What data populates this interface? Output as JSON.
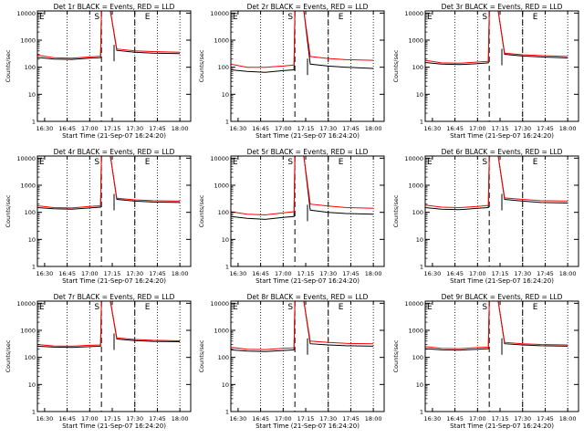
{
  "colors": {
    "events": "#000000",
    "lld": "#ff0000",
    "background": "#ffffff"
  },
  "shared": {
    "xlabel": "Start Time (21-Sep-07 16:24:20)",
    "ylabel": "Counts/sec",
    "x_ticks": [
      16.5,
      16.75,
      17.0,
      17.25,
      17.5,
      17.75,
      18.0
    ],
    "x_tick_labels": [
      "16:30",
      "16:45",
      "17:00",
      "17:15",
      "17:30",
      "17:45",
      "18:00"
    ],
    "y_ticks": [
      1,
      10,
      100,
      1000,
      10000
    ],
    "y_tick_labels": [
      "1",
      "10",
      "100",
      "1000",
      "10000"
    ],
    "xlim": [
      16.42,
      18.12
    ],
    "ylim": [
      1,
      12000
    ],
    "dotted_lines_x": [
      16.75,
      17.0,
      17.5,
      17.75,
      18.0
    ],
    "dashed_lines_x": [
      17.13,
      17.5
    ],
    "markers": [
      {
        "label": "S",
        "x": 17.08
      },
      {
        "label": "E",
        "x": 17.64
      }
    ],
    "short_marker_x": 17.27
  },
  "chart_data": [
    {
      "type": "line",
      "title": "Det 1r BLACK = Events, RED = LLD",
      "xlabel": "Start Time (21-Sep-07 16:24:20)",
      "ylabel": "Counts/sec",
      "ylim": [
        1,
        12000
      ],
      "series": [
        {
          "name": "Events",
          "color": "#000000",
          "x": [
            16.42,
            16.6,
            16.8,
            17.0,
            17.12,
            17.13,
            17.2,
            17.23,
            17.3,
            17.5,
            17.7,
            18.0
          ],
          "values": [
            230,
            200,
            195,
            215,
            225,
            12000,
            12000,
            12000,
            420,
            360,
            330,
            320
          ]
        },
        {
          "name": "LLD",
          "color": "#ff0000",
          "x": [
            16.42,
            16.6,
            16.8,
            17.0,
            17.12,
            17.13,
            17.2,
            17.23,
            17.3,
            17.5,
            17.7,
            18.0
          ],
          "values": [
            280,
            225,
            215,
            240,
            255,
            12000,
            12000,
            12000,
            470,
            400,
            380,
            360
          ]
        }
      ]
    },
    {
      "type": "line",
      "title": "Det 2r BLACK = Events, RED = LLD",
      "xlabel": "Start Time (21-Sep-07 16:24:20)",
      "ylabel": "Counts/sec",
      "ylim": [
        1,
        12000
      ],
      "series": [
        {
          "name": "Events",
          "color": "#000000",
          "x": [
            16.42,
            16.6,
            16.8,
            17.0,
            17.12,
            17.13,
            17.2,
            17.23,
            17.3,
            17.5,
            17.7,
            18.0
          ],
          "values": [
            80,
            70,
            65,
            75,
            80,
            12000,
            12000,
            12000,
            130,
            110,
            100,
            90
          ]
        },
        {
          "name": "LLD",
          "color": "#ff0000",
          "x": [
            16.42,
            16.6,
            16.8,
            17.0,
            17.12,
            17.13,
            17.2,
            17.23,
            17.3,
            17.5,
            17.7,
            18.0
          ],
          "values": [
            130,
            100,
            100,
            110,
            120,
            12000,
            12000,
            12000,
            250,
            210,
            190,
            180
          ]
        }
      ]
    },
    {
      "type": "line",
      "title": "Det 3r BLACK = Events, RED = LLD",
      "xlabel": "Start Time (21-Sep-07 16:24:20)",
      "ylabel": "Counts/sec",
      "ylim": [
        1,
        12000
      ],
      "series": [
        {
          "name": "Events",
          "color": "#000000",
          "x": [
            16.42,
            16.6,
            16.8,
            17.0,
            17.12,
            17.13,
            17.2,
            17.23,
            17.3,
            17.5,
            17.7,
            18.0
          ],
          "values": [
            150,
            130,
            125,
            135,
            145,
            12000,
            12000,
            12000,
            300,
            260,
            240,
            220
          ]
        },
        {
          "name": "LLD",
          "color": "#ff0000",
          "x": [
            16.42,
            16.6,
            16.8,
            17.0,
            17.12,
            17.13,
            17.2,
            17.23,
            17.3,
            17.5,
            17.7,
            18.0
          ],
          "values": [
            180,
            145,
            140,
            155,
            165,
            12000,
            12000,
            12000,
            330,
            290,
            270,
            250
          ]
        }
      ]
    },
    {
      "type": "line",
      "title": "Det 4r BLACK = Events, RED = LLD",
      "xlabel": "Start Time (21-Sep-07 16:24:20)",
      "ylabel": "Counts/sec",
      "ylim": [
        1,
        12000
      ],
      "series": [
        {
          "name": "Events",
          "color": "#000000",
          "x": [
            16.42,
            16.6,
            16.8,
            17.0,
            17.12,
            17.13,
            17.2,
            17.23,
            17.3,
            17.5,
            17.7,
            18.0
          ],
          "values": [
            150,
            135,
            130,
            145,
            155,
            12000,
            12000,
            12000,
            300,
            260,
            240,
            230
          ]
        },
        {
          "name": "LLD",
          "color": "#ff0000",
          "x": [
            16.42,
            16.6,
            16.8,
            17.0,
            17.12,
            17.13,
            17.2,
            17.23,
            17.3,
            17.5,
            17.7,
            18.0
          ],
          "values": [
            175,
            150,
            145,
            165,
            175,
            12000,
            12000,
            12000,
            330,
            290,
            270,
            260
          ]
        }
      ]
    },
    {
      "type": "line",
      "title": "Det 5r BLACK = Events, RED = LLD",
      "xlabel": "Start Time (21-Sep-07 16:24:20)",
      "ylabel": "Counts/sec",
      "ylim": [
        1,
        12000
      ],
      "series": [
        {
          "name": "Events",
          "color": "#000000",
          "x": [
            16.42,
            16.6,
            16.8,
            17.0,
            17.12,
            17.13,
            17.2,
            17.23,
            17.3,
            17.5,
            17.7,
            18.0
          ],
          "values": [
            70,
            60,
            55,
            65,
            70,
            12000,
            12000,
            12000,
            120,
            100,
            90,
            85
          ]
        },
        {
          "name": "LLD",
          "color": "#ff0000",
          "x": [
            16.42,
            16.6,
            16.8,
            17.0,
            17.12,
            17.13,
            17.2,
            17.23,
            17.3,
            17.5,
            17.7,
            18.0
          ],
          "values": [
            105,
            85,
            80,
            95,
            105,
            12000,
            12000,
            12000,
            200,
            170,
            150,
            140
          ]
        }
      ]
    },
    {
      "type": "line",
      "title": "Det 6r BLACK = Events, RED = LLD",
      "xlabel": "Start Time (21-Sep-07 16:24:20)",
      "ylabel": "Counts/sec",
      "ylim": [
        1,
        12000
      ],
      "series": [
        {
          "name": "Events",
          "color": "#000000",
          "x": [
            16.42,
            16.6,
            16.8,
            17.0,
            17.12,
            17.13,
            17.2,
            17.23,
            17.3,
            17.5,
            17.7,
            18.0
          ],
          "values": [
            150,
            130,
            125,
            140,
            150,
            12000,
            12000,
            12000,
            300,
            260,
            230,
            220
          ]
        },
        {
          "name": "LLD",
          "color": "#ff0000",
          "x": [
            16.42,
            16.6,
            16.8,
            17.0,
            17.12,
            17.13,
            17.2,
            17.23,
            17.3,
            17.5,
            17.7,
            18.0
          ],
          "values": [
            185,
            155,
            150,
            165,
            180,
            12000,
            12000,
            12000,
            340,
            300,
            270,
            260
          ]
        }
      ]
    },
    {
      "type": "line",
      "title": "Det 7r BLACK = Events, RED = LLD",
      "xlabel": "Start Time (21-Sep-07 16:24:20)",
      "ylabel": "Counts/sec",
      "ylim": [
        1,
        12000
      ],
      "series": [
        {
          "name": "Events",
          "color": "#000000",
          "x": [
            16.42,
            16.6,
            16.8,
            17.0,
            17.12,
            17.13,
            17.2,
            17.23,
            17.3,
            17.5,
            17.7,
            18.0
          ],
          "values": [
            260,
            240,
            235,
            250,
            260,
            12000,
            12000,
            12000,
            480,
            420,
            390,
            380
          ]
        },
        {
          "name": "LLD",
          "color": "#ff0000",
          "x": [
            16.42,
            16.6,
            16.8,
            17.0,
            17.12,
            17.13,
            17.2,
            17.23,
            17.3,
            17.5,
            17.7,
            18.0
          ],
          "values": [
            300,
            265,
            260,
            280,
            290,
            12000,
            12000,
            12000,
            530,
            460,
            430,
            410
          ]
        }
      ]
    },
    {
      "type": "line",
      "title": "Det 8r BLACK = Events, RED = LLD",
      "xlabel": "Start Time (21-Sep-07 16:24:20)",
      "ylabel": "Counts/sec",
      "ylim": [
        1,
        12000
      ],
      "series": [
        {
          "name": "Events",
          "color": "#000000",
          "x": [
            16.42,
            16.6,
            16.8,
            17.0,
            17.12,
            17.13,
            17.2,
            17.23,
            17.3,
            17.5,
            17.7,
            18.0
          ],
          "values": [
            190,
            170,
            165,
            180,
            190,
            12000,
            12000,
            12000,
            320,
            290,
            270,
            260
          ]
        },
        {
          "name": "LLD",
          "color": "#ff0000",
          "x": [
            16.42,
            16.6,
            16.8,
            17.0,
            17.12,
            17.13,
            17.2,
            17.23,
            17.3,
            17.5,
            17.7,
            18.0
          ],
          "values": [
            235,
            200,
            195,
            215,
            225,
            12000,
            12000,
            12000,
            400,
            360,
            330,
            320
          ]
        }
      ]
    },
    {
      "type": "line",
      "title": "Det 9r BLACK = Events, RED = LLD",
      "xlabel": "Start Time (21-Sep-07 16:24:20)",
      "ylabel": "Counts/sec",
      "ylim": [
        1,
        12000
      ],
      "series": [
        {
          "name": "Events",
          "color": "#000000",
          "x": [
            16.42,
            16.6,
            16.8,
            17.0,
            17.12,
            17.13,
            17.2,
            17.23,
            17.3,
            17.5,
            17.7,
            18.0
          ],
          "values": [
            210,
            190,
            185,
            200,
            210,
            12000,
            12000,
            12000,
            320,
            290,
            270,
            260
          ]
        },
        {
          "name": "LLD",
          "color": "#ff0000",
          "x": [
            16.42,
            16.6,
            16.8,
            17.0,
            17.12,
            17.13,
            17.2,
            17.23,
            17.3,
            17.5,
            17.7,
            18.0
          ],
          "values": [
            250,
            215,
            210,
            230,
            240,
            12000,
            12000,
            12000,
            360,
            320,
            300,
            290
          ]
        }
      ]
    }
  ]
}
